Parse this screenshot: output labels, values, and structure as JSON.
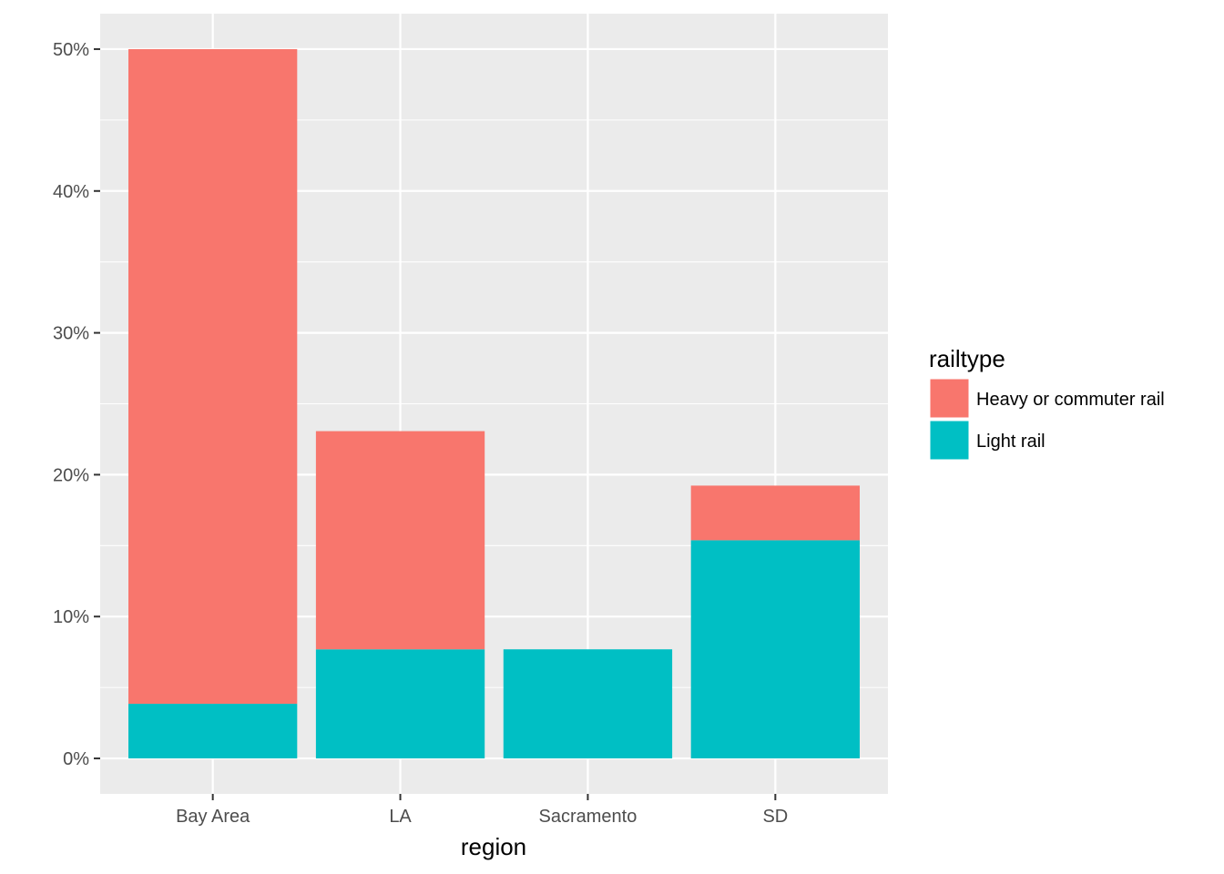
{
  "chart_data": {
    "type": "bar",
    "stacked": true,
    "categories": [
      "Bay Area",
      "LA",
      "Sacramento",
      "SD"
    ],
    "series": [
      {
        "name": "Heavy or commuter rail",
        "color": "#F8766D",
        "values": [
          46.15,
          15.38,
          0,
          3.85
        ]
      },
      {
        "name": "Light rail",
        "color": "#00BFC4",
        "values": [
          3.85,
          7.69,
          7.69,
          15.38
        ]
      }
    ],
    "xlabel": "region",
    "ylabel": "",
    "ylim": [
      -2.5,
      52.5
    ],
    "y_ticks": [
      0,
      10,
      20,
      30,
      40,
      50
    ],
    "y_tick_labels": [
      "0%",
      "10%",
      "20%",
      "30%",
      "40%",
      "50%"
    ],
    "grid": true,
    "legend": {
      "title": "railtype",
      "position": "right"
    },
    "colors": {
      "panel": "#EBEBEB",
      "grid": "#FFFFFF"
    }
  }
}
